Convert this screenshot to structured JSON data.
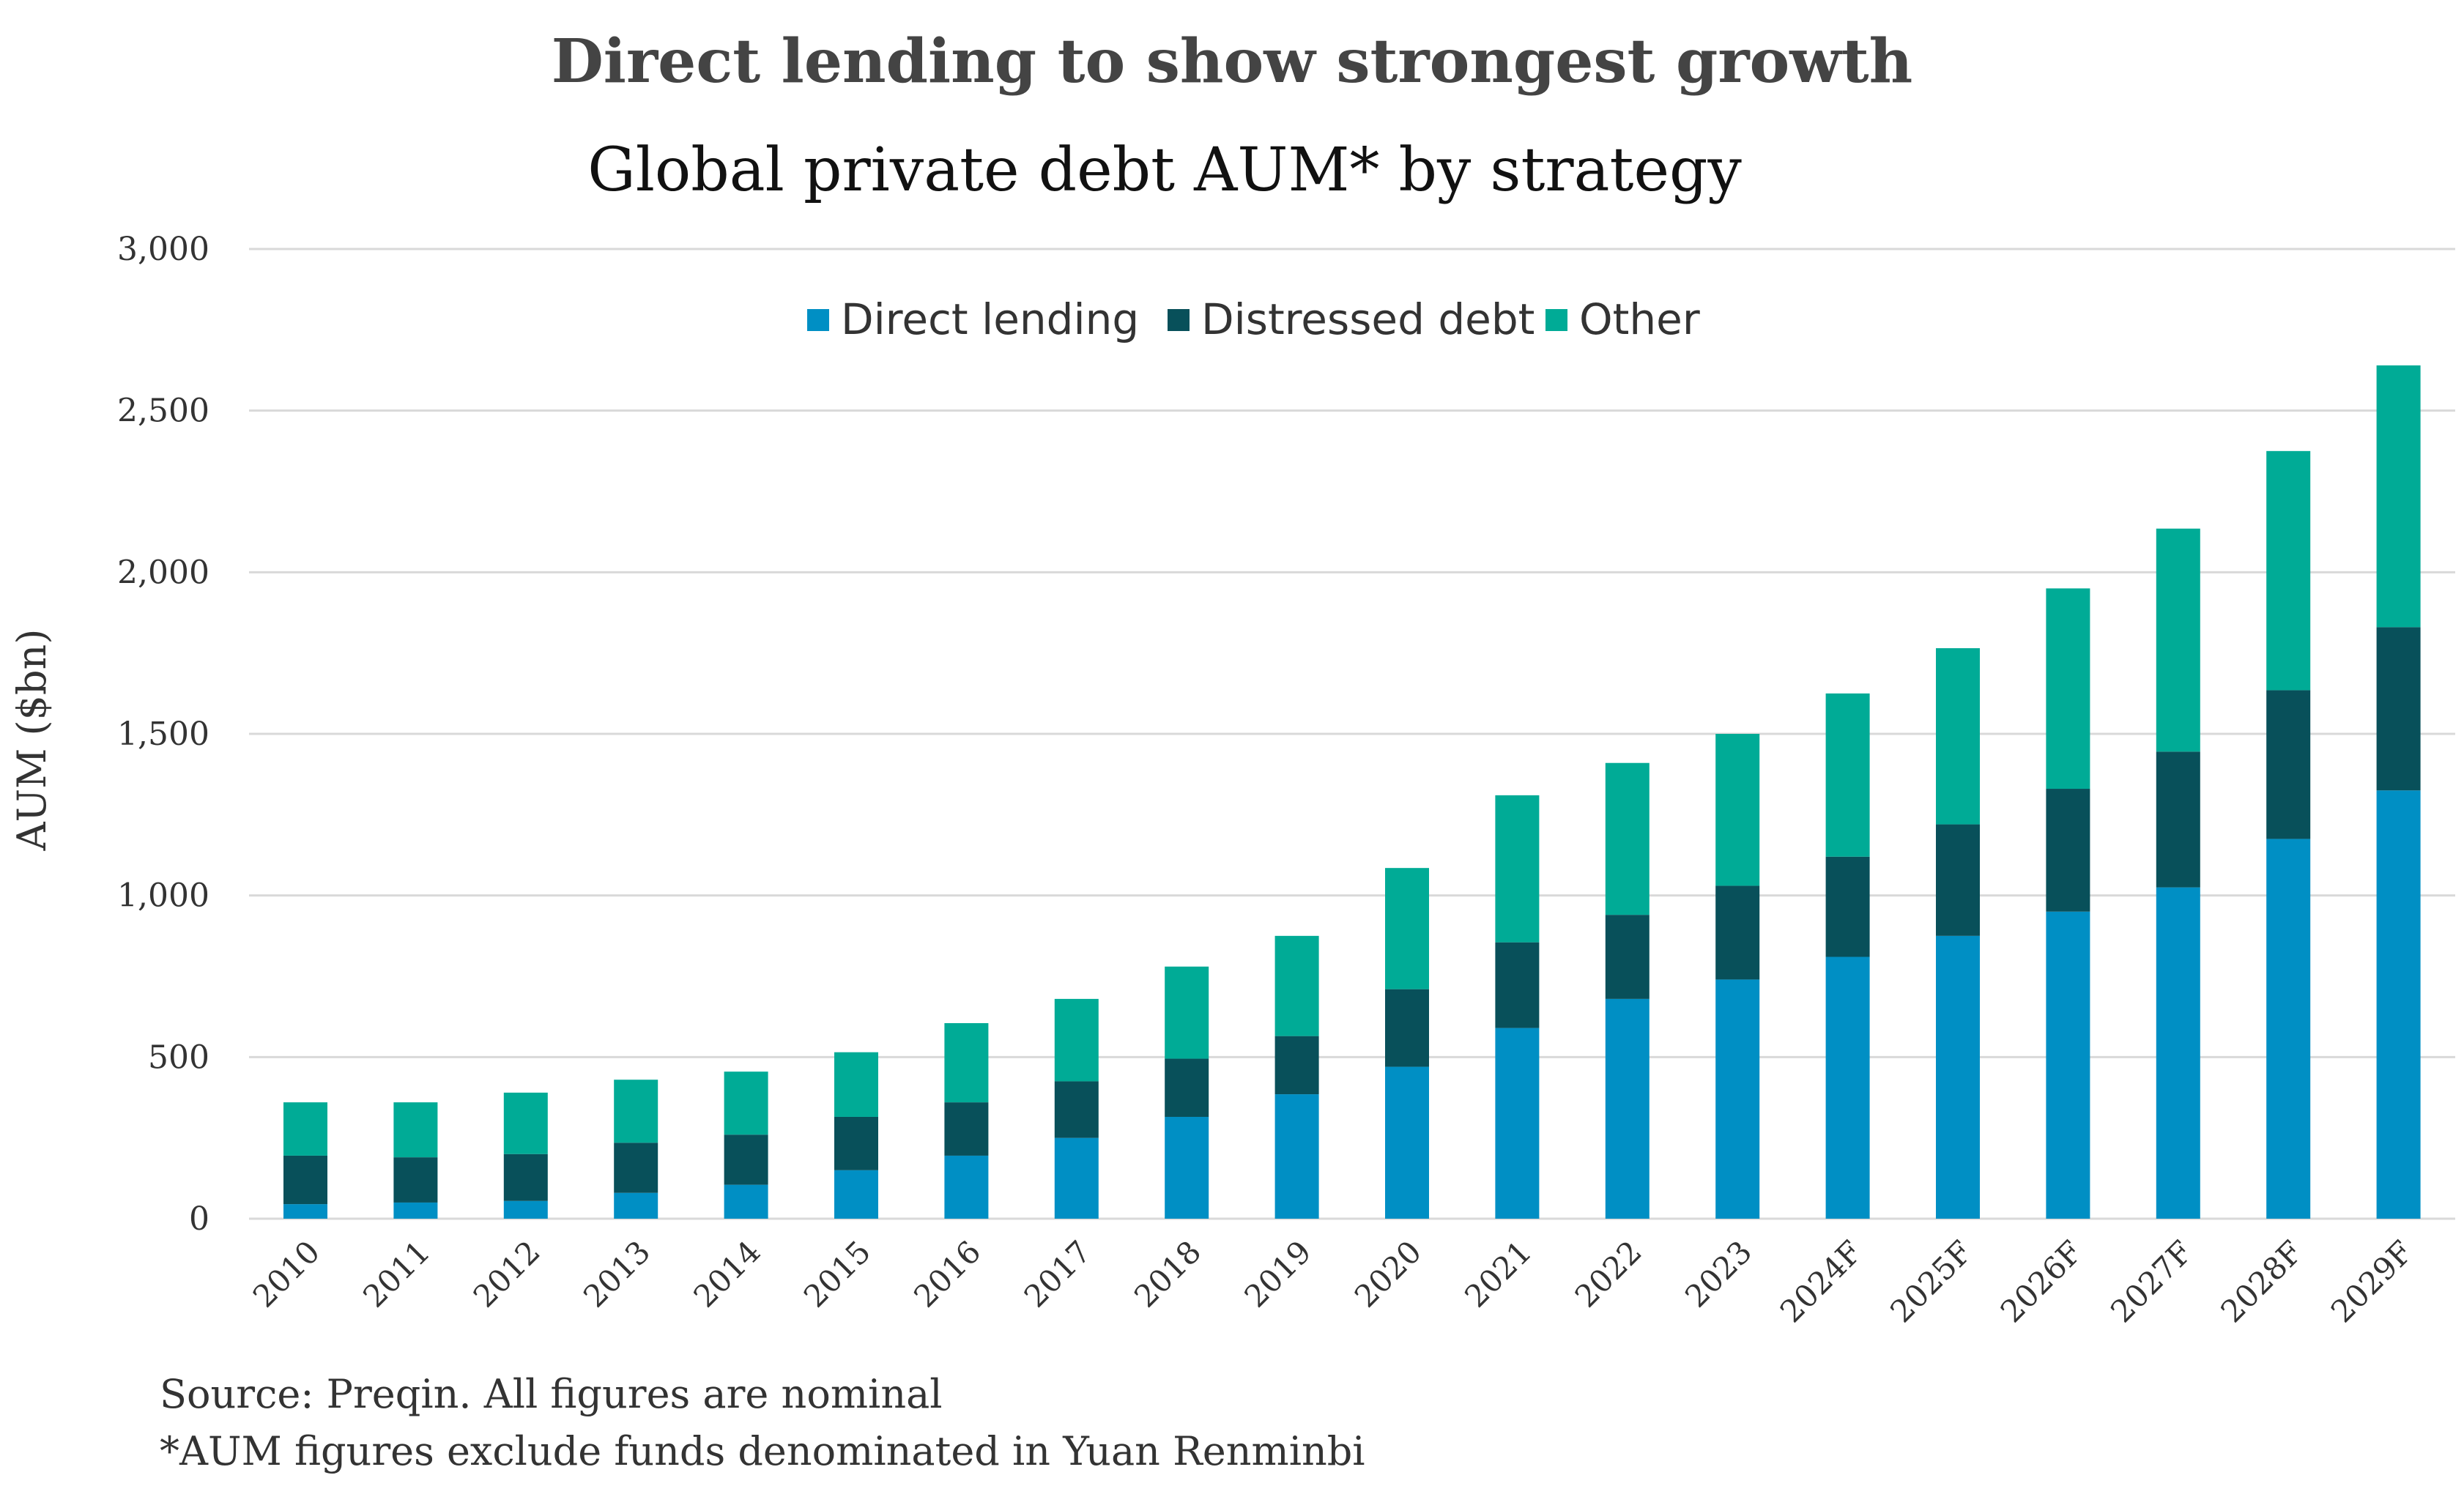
{
  "chart_data": {
    "type": "bar",
    "stacked": true,
    "title": "Direct lending to show strongest growth",
    "subtitle": "Global private debt AUM* by strategy",
    "xlabel": "",
    "ylabel": "AUM ($bn)",
    "ylim": [
      0,
      3000
    ],
    "yticks": [
      0,
      500,
      1000,
      1500,
      2000,
      2500,
      3000
    ],
    "ytick_labels": [
      "0",
      "500",
      "1,000",
      "1,500",
      "2,000",
      "2,500",
      "3,000"
    ],
    "grid": true,
    "legend_position": "top-center",
    "categories": [
      "2010",
      "2011",
      "2012",
      "2013",
      "2014",
      "2015",
      "2016",
      "2017",
      "2018",
      "2019",
      "2020",
      "2021",
      "2022",
      "2023",
      "2024F",
      "2025F",
      "2026F",
      "2027F",
      "2028F",
      "2029F"
    ],
    "series": [
      {
        "name": "Direct lending",
        "color": "#008fc4",
        "values": [
          45,
          50,
          55,
          80,
          105,
          150,
          195,
          250,
          315,
          385,
          470,
          590,
          680,
          740,
          810,
          875,
          950,
          1025,
          1175,
          1325
        ]
      },
      {
        "name": "Distressed debt",
        "color": "#08505a",
        "values": [
          150,
          140,
          145,
          155,
          155,
          165,
          165,
          175,
          180,
          180,
          240,
          265,
          260,
          290,
          310,
          345,
          380,
          420,
          460,
          505
        ]
      },
      {
        "name": "Other",
        "color": "#00ab96",
        "values": [
          165,
          170,
          190,
          195,
          195,
          200,
          245,
          255,
          285,
          310,
          375,
          455,
          470,
          470,
          505,
          545,
          620,
          690,
          740,
          810
        ]
      }
    ]
  },
  "footnotes": {
    "source": "Source: Preqin. All figures are nominal",
    "note": "*AUM figures exclude funds denominated in Yuan Renminbi"
  }
}
